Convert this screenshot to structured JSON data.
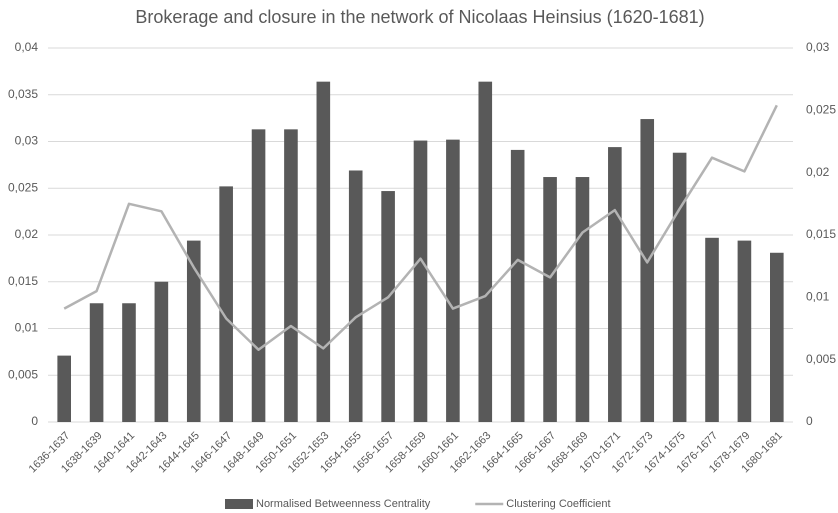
{
  "chart_data": {
    "type": "bar-line",
    "title": "Brokerage and closure in the network of Nicolaas Heinsius (1620-1681)",
    "categories": [
      "1636-1637",
      "1638-1639",
      "1640-1641",
      "1642-1643",
      "1644-1645",
      "1646-1647",
      "1648-1649",
      "1650-1651",
      "1652-1653",
      "1654-1655",
      "1656-1657",
      "1658-1659",
      "1660-1661",
      "1662-1663",
      "1664-1665",
      "1666-1667",
      "1668-1669",
      "1670-1671",
      "1672-1673",
      "1674-1675",
      "1676-1677",
      "1678-1679",
      "1680-1681"
    ],
    "series": [
      {
        "name": "Normalised Betweenness Centrality",
        "type": "bar",
        "color": "#595959",
        "values": [
          0.0071,
          0.0127,
          0.0127,
          0.015,
          0.0194,
          0.0252,
          0.0313,
          0.0313,
          0.0364,
          0.0269,
          0.0247,
          0.0301,
          0.0302,
          0.0364,
          0.0291,
          0.0262,
          0.0262,
          0.0294,
          0.0324,
          0.0288,
          0.0197,
          0.0194,
          0.0181
        ]
      },
      {
        "name": "Clustering Coefficient",
        "type": "line",
        "axis": "y2",
        "color": "#b3b3b3",
        "values": [
          0.0091,
          0.0105,
          0.0175,
          0.0169,
          0.0124,
          0.0083,
          0.0058,
          0.0077,
          0.0059,
          0.0084,
          0.01,
          0.0131,
          0.0091,
          0.0101,
          0.013,
          0.0116,
          0.0152,
          0.017,
          0.0128,
          0.0171,
          0.0212,
          0.0201,
          0.0254
        ]
      }
    ],
    "ylim": [
      0,
      0.04
    ],
    "yticks": [
      0,
      {
        "value": 0.005,
        "label": "0,005"
      },
      {
        "value": 0.01,
        "label": "0,01"
      },
      {
        "value": 0.015,
        "label": "0,015"
      },
      {
        "value": 0.02,
        "label": "0,02"
      },
      {
        "value": 0.025,
        "label": "0,025"
      },
      {
        "value": 0.03,
        "label": "0,03"
      },
      {
        "value": 0.035,
        "label": "0,035"
      },
      {
        "value": 0.04,
        "label": "0,04"
      }
    ],
    "y2lim": [
      0,
      0.03
    ],
    "y2ticks": [
      0,
      {
        "value": 0.005,
        "label": "0,005"
      },
      {
        "value": 0.01,
        "label": "0,01"
      },
      {
        "value": 0.015,
        "label": "0,015"
      },
      {
        "value": 0.02,
        "label": "0,02"
      },
      {
        "value": 0.025,
        "label": "0,025"
      },
      {
        "value": 0.03,
        "label": "0,03"
      }
    ],
    "grid": true,
    "legend": "bottom"
  }
}
